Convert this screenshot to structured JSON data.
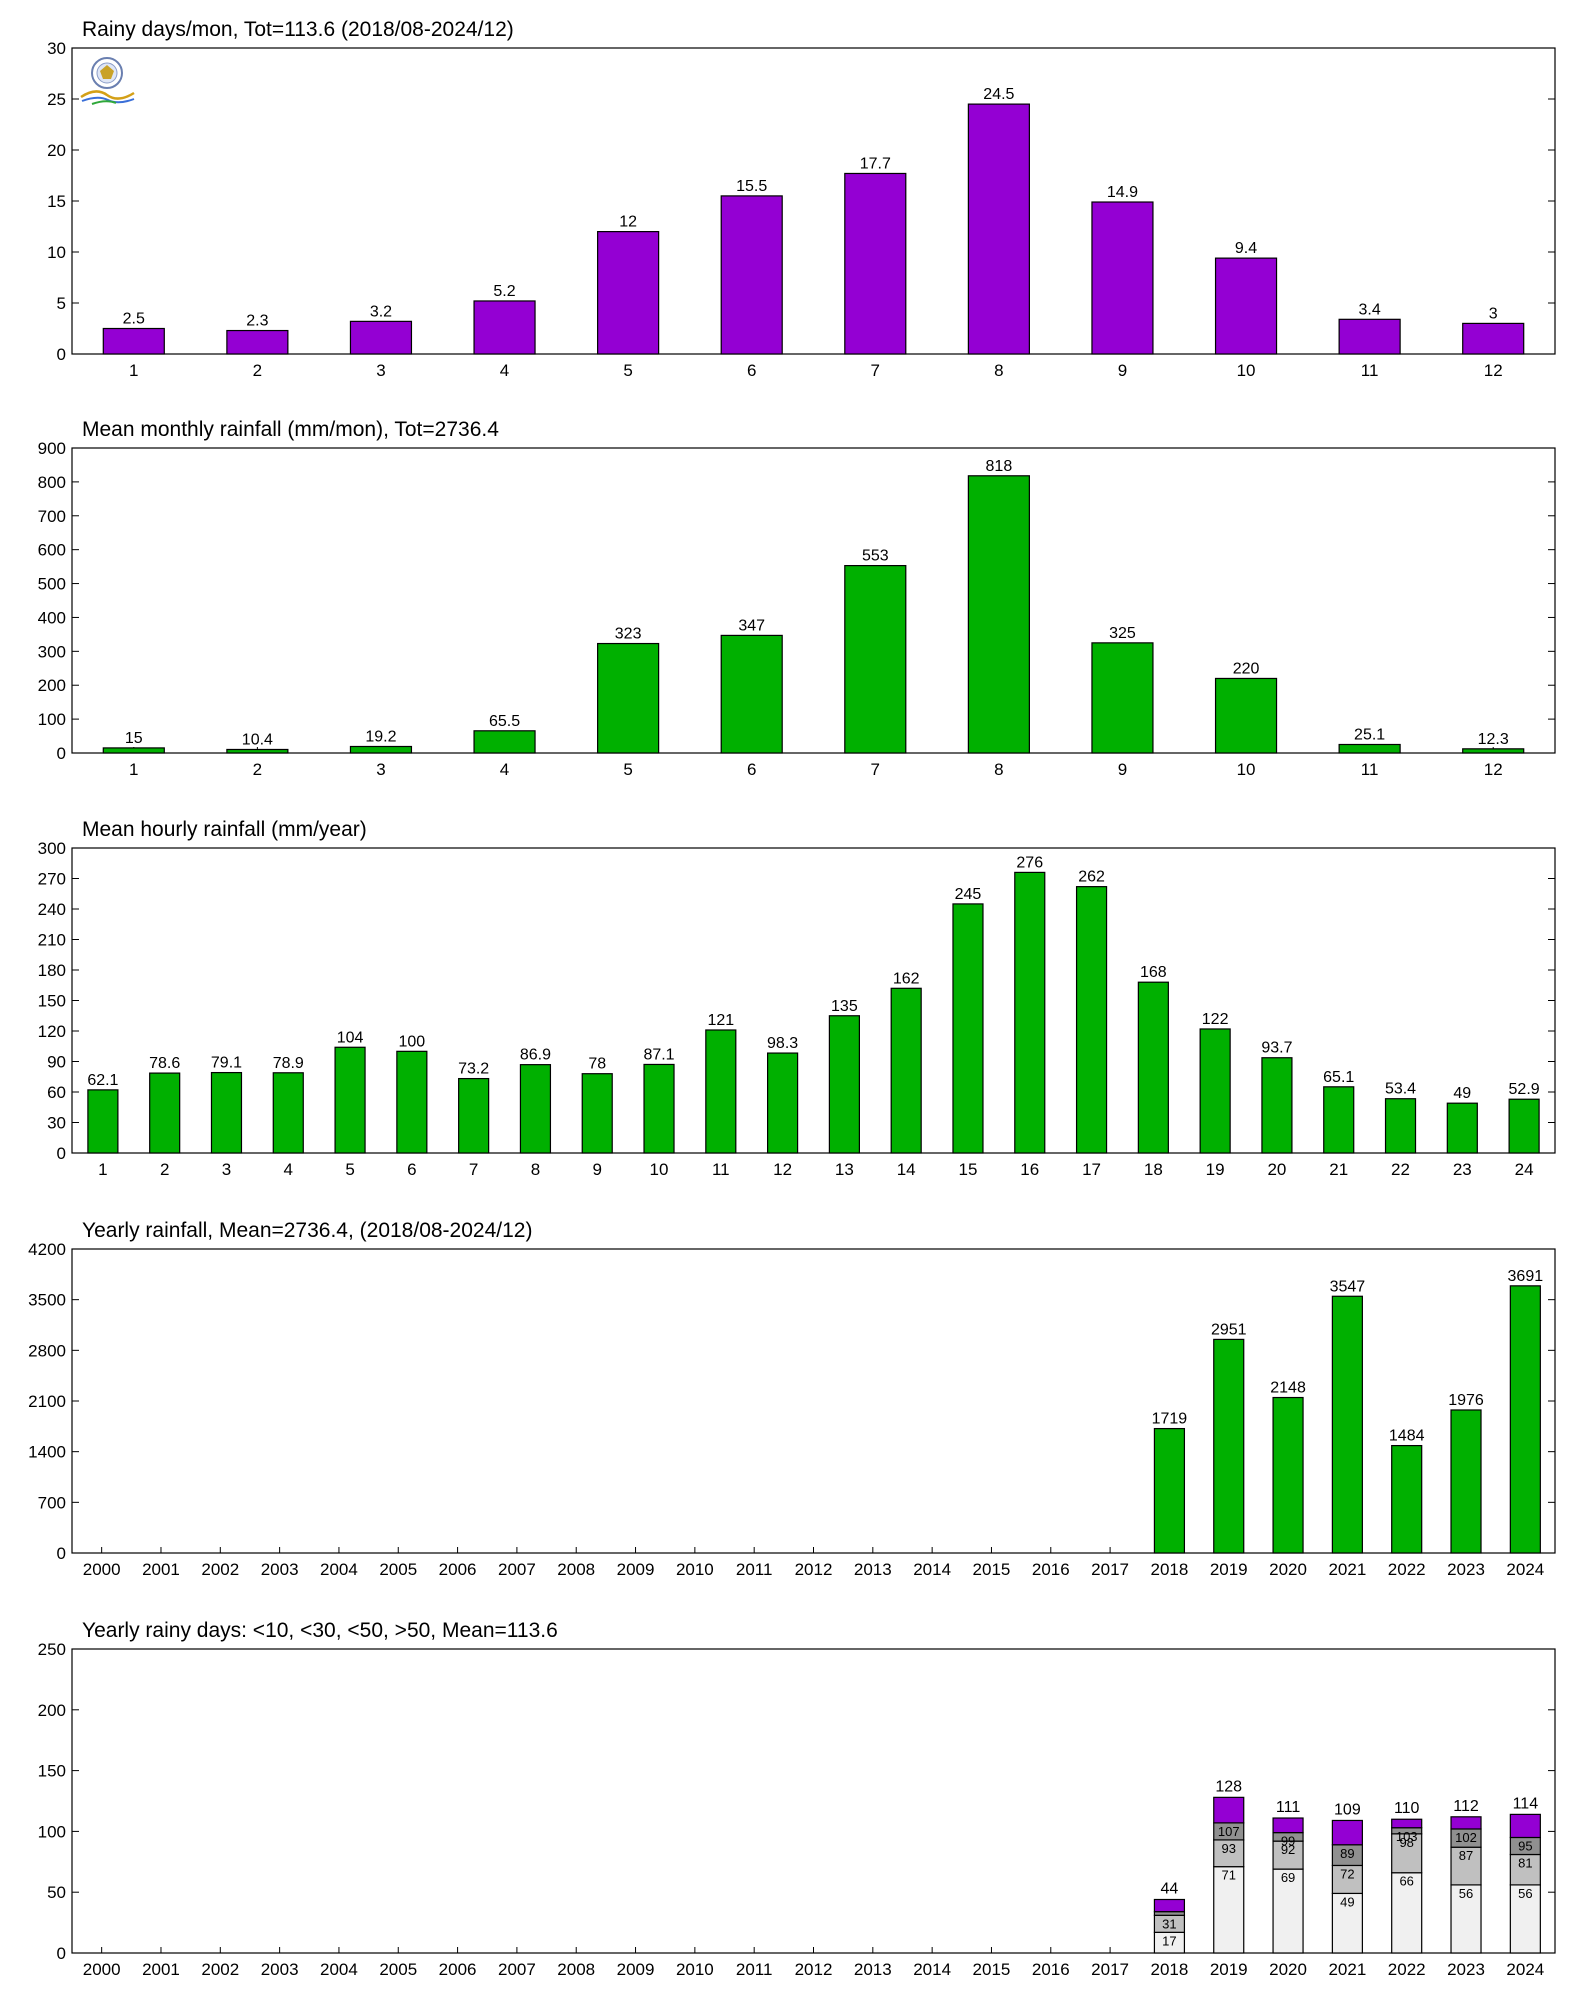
{
  "colors": {
    "purple": "#9400d3",
    "green": "#00b000",
    "light": "#f0f0f0",
    "mid": "#c0c0c0",
    "dark": "#909090"
  },
  "chart_data": [
    {
      "type": "bar",
      "title": "Rainy days/mon, Tot=113.6 (2018/08-2024/12)",
      "xlabel": "",
      "ylabel": "",
      "categories": [
        "1",
        "2",
        "3",
        "4",
        "5",
        "6",
        "7",
        "8",
        "9",
        "10",
        "11",
        "12"
      ],
      "values": [
        2.5,
        2.3,
        3.2,
        5.2,
        12,
        15.5,
        17.7,
        24.5,
        14.9,
        9.4,
        3.4,
        3
      ],
      "labels": [
        "2.5",
        "2.3",
        "3.2",
        "5.2",
        "12",
        "15.5",
        "17.7",
        "24.5",
        "14.9",
        "9.4",
        "3.4",
        "3"
      ],
      "ylim": [
        0,
        30
      ],
      "yticks": [
        0,
        5,
        10,
        15,
        20,
        25,
        30
      ],
      "color": "#9400d3",
      "grid": false
    },
    {
      "type": "bar",
      "title": "Mean monthly rainfall (mm/mon), Tot=2736.4",
      "xlabel": "",
      "ylabel": "",
      "categories": [
        "1",
        "2",
        "3",
        "4",
        "5",
        "6",
        "7",
        "8",
        "9",
        "10",
        "11",
        "12"
      ],
      "values": [
        15,
        10.4,
        19.2,
        65.5,
        323,
        347,
        553,
        818,
        325,
        220,
        25.1,
        12.3
      ],
      "labels": [
        "15",
        "10.4",
        "19.2",
        "65.5",
        "323",
        "347",
        "553",
        "818",
        "325",
        "220",
        "25.1",
        "12.3"
      ],
      "ylim": [
        0,
        900
      ],
      "yticks": [
        0,
        100,
        200,
        300,
        400,
        500,
        600,
        700,
        800,
        900
      ],
      "color": "#00b000",
      "grid": false
    },
    {
      "type": "bar",
      "title": "Mean hourly rainfall (mm/year)",
      "xlabel": "",
      "ylabel": "",
      "categories": [
        "1",
        "2",
        "3",
        "4",
        "5",
        "6",
        "7",
        "8",
        "9",
        "10",
        "11",
        "12",
        "13",
        "14",
        "15",
        "16",
        "17",
        "18",
        "19",
        "20",
        "21",
        "22",
        "23",
        "24"
      ],
      "values": [
        62.1,
        78.6,
        79.1,
        78.9,
        104,
        100,
        73.2,
        86.9,
        78,
        87.1,
        121,
        98.3,
        135,
        162,
        245,
        276,
        262,
        168,
        122,
        93.7,
        65.1,
        53.4,
        49,
        52.9
      ],
      "labels": [
        "62.1",
        "78.6",
        "79.1",
        "78.9",
        "104",
        "100",
        "73.2",
        "86.9",
        "78",
        "87.1",
        "121",
        "98.3",
        "135",
        "162",
        "245",
        "276",
        "262",
        "168",
        "122",
        "93.7",
        "65.1",
        "53.4",
        "49",
        "52.9"
      ],
      "ylim": [
        0,
        300
      ],
      "yticks": [
        0,
        30,
        60,
        90,
        120,
        150,
        180,
        210,
        240,
        270,
        300
      ],
      "color": "#00b000",
      "grid": false
    },
    {
      "type": "bar",
      "title": "Yearly rainfall, Mean=2736.4, (2018/08-2024/12)",
      "xlabel": "",
      "ylabel": "",
      "categories": [
        "2000",
        "2001",
        "2002",
        "2003",
        "2004",
        "2005",
        "2006",
        "2007",
        "2008",
        "2009",
        "2010",
        "2011",
        "2012",
        "2013",
        "2014",
        "2015",
        "2016",
        "2017",
        "2018",
        "2019",
        "2020",
        "2021",
        "2022",
        "2023",
        "2024"
      ],
      "values": [
        null,
        null,
        null,
        null,
        null,
        null,
        null,
        null,
        null,
        null,
        null,
        null,
        null,
        null,
        null,
        null,
        null,
        null,
        1719,
        2951,
        2148,
        3547,
        1484,
        1976,
        3691
      ],
      "labels": [
        "",
        "",
        "",
        "",
        "",
        "",
        "",
        "",
        "",
        "",
        "",
        "",
        "",
        "",
        "",
        "",
        "",
        "",
        "1719",
        "2951",
        "2148",
        "3547",
        "1484",
        "1976",
        "3691"
      ],
      "ylim": [
        0,
        4200
      ],
      "yticks": [
        0,
        700,
        1400,
        2100,
        2800,
        3500,
        4200
      ],
      "color": "#00b000",
      "grid": false
    },
    {
      "type": "bar",
      "stacked": true,
      "title": "Yearly rainy days: <10, <30, <50, >50, Mean=113.6",
      "xlabel": "",
      "ylabel": "",
      "categories": [
        "2000",
        "2001",
        "2002",
        "2003",
        "2004",
        "2005",
        "2006",
        "2007",
        "2008",
        "2009",
        "2010",
        "2011",
        "2012",
        "2013",
        "2014",
        "2015",
        "2016",
        "2017",
        "2018",
        "2019",
        "2020",
        "2021",
        "2022",
        "2023",
        "2024"
      ],
      "ylim": [
        0,
        250
      ],
      "yticks": [
        0,
        50,
        100,
        150,
        200,
        250
      ],
      "grid": false,
      "stacks": [
        {
          "year": "2018",
          "cumulative": [
            17,
            31,
            34,
            44
          ],
          "labels": [
            "17",
            "31",
            "",
            ""
          ],
          "total": "44"
        },
        {
          "year": "2019",
          "cumulative": [
            71,
            93,
            107,
            128
          ],
          "labels": [
            "71",
            "93",
            "107",
            ""
          ],
          "total": "128"
        },
        {
          "year": "2020",
          "cumulative": [
            69,
            92,
            99,
            111
          ],
          "labels": [
            "69",
            "92",
            "99",
            ""
          ],
          "total": "111"
        },
        {
          "year": "2021",
          "cumulative": [
            49,
            72,
            89,
            109
          ],
          "labels": [
            "49",
            "72",
            "89",
            ""
          ],
          "total": "109"
        },
        {
          "year": "2022",
          "cumulative": [
            66,
            98,
            103,
            110
          ],
          "labels": [
            "66",
            "98",
            "103",
            ""
          ],
          "total": "110"
        },
        {
          "year": "2023",
          "cumulative": [
            56,
            87,
            102,
            112
          ],
          "labels": [
            "56",
            "87",
            "102",
            ""
          ],
          "total": "112"
        },
        {
          "year": "2024",
          "cumulative": [
            56,
            81,
            95,
            114
          ],
          "labels": [
            "56",
            "81",
            "95",
            ""
          ],
          "total": "114"
        }
      ]
    }
  ]
}
